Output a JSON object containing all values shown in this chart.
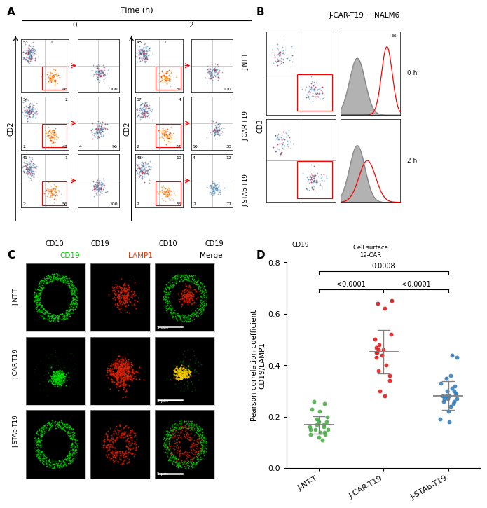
{
  "panel_D": {
    "groups": [
      "J-NT-T",
      "J-CAR-T19",
      "J-STAb-T19"
    ],
    "colors": [
      "#4daf4a",
      "#e41a1c",
      "#377eb8"
    ],
    "jnt_data": [
      0.11,
      0.12,
      0.13,
      0.13,
      0.14,
      0.14,
      0.15,
      0.15,
      0.15,
      0.16,
      0.16,
      0.17,
      0.17,
      0.18,
      0.18,
      0.19,
      0.2,
      0.22,
      0.23,
      0.25,
      0.26
    ],
    "car_data": [
      0.28,
      0.3,
      0.34,
      0.36,
      0.38,
      0.4,
      0.43,
      0.44,
      0.45,
      0.45,
      0.46,
      0.46,
      0.47,
      0.48,
      0.5,
      0.52,
      0.62,
      0.64,
      0.65
    ],
    "stab_data": [
      0.18,
      0.19,
      0.22,
      0.24,
      0.25,
      0.26,
      0.26,
      0.27,
      0.27,
      0.27,
      0.28,
      0.28,
      0.28,
      0.29,
      0.29,
      0.3,
      0.3,
      0.31,
      0.32,
      0.33,
      0.35,
      0.36,
      0.43,
      0.44
    ],
    "jnt_mean": 0.168,
    "car_mean": 0.453,
    "stab_mean": 0.282,
    "jnt_sd": 0.035,
    "car_sd": 0.085,
    "stab_sd": 0.056,
    "ylabel": "Pearson correlation coefficient\nCD19/LAMP1",
    "ylim": [
      0.0,
      0.8
    ],
    "yticks": [
      0.0,
      0.2,
      0.4,
      0.6,
      0.8
    ],
    "pval_jnt_car": "<0.0001",
    "pval_car_stab": "<0.0001",
    "pval_jnt_stab": "0.0008"
  },
  "panel_A": {
    "title": "Time (h)",
    "t0_cd10_data": [
      [
        "53",
        "1",
        "46"
      ],
      [
        "54",
        "2",
        "2",
        "42"
      ],
      [
        "41",
        "1",
        "2",
        "56"
      ]
    ],
    "t0_cd19_data": [
      [
        "100"
      ],
      [
        "4",
        "96"
      ],
      [
        "100"
      ]
    ],
    "t2_cd10_data": [
      [
        "48",
        "1",
        "51"
      ],
      [
        "57",
        "4",
        "2",
        "37"
      ],
      [
        "43",
        "10",
        "2",
        "55"
      ]
    ],
    "t2_cd19_data": [
      [
        "100"
      ],
      [
        "50",
        "38"
      ],
      [
        "4",
        "12",
        "7",
        "77"
      ]
    ],
    "row_labels": [
      "J-NT-T",
      "J-CAR-T19",
      "J-STAb-T19"
    ]
  },
  "panel_B": {
    "title": "J-CAR-T19 + NALM6",
    "xlabel": "CD19",
    "ylabel": "CD3",
    "xlabel2": "Cell surface\n19-CAR",
    "time_labels": [
      "0 h",
      "2 h"
    ],
    "histogram_value": "66"
  },
  "panel_C": {
    "col_labels": [
      "CD19",
      "LAMP1",
      "Merge"
    ],
    "col_colors": [
      "#00cc00",
      "#ff3300",
      "#ffffff"
    ],
    "row_labels": [
      "J-NT-T",
      "J-CAR-T19",
      "J-STAb-T19"
    ],
    "scale_bar": "5 μm"
  },
  "figure": {
    "bg_color": "#ffffff"
  }
}
